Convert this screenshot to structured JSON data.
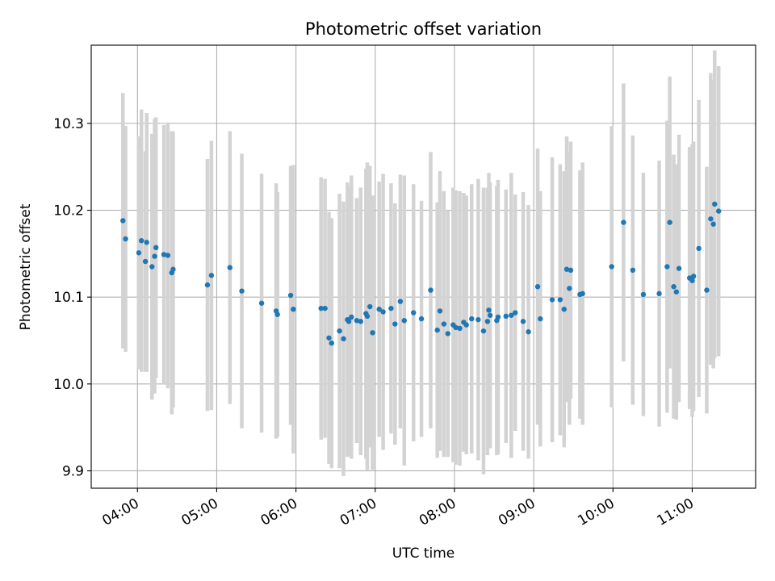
{
  "chart_data": {
    "type": "scatter",
    "title": "Photometric offset variation",
    "xlabel": "UTC time",
    "ylabel": "Photometric offset",
    "grid": true,
    "x_tick_labels": [
      "04:00",
      "05:00",
      "06:00",
      "07:00",
      "08:00",
      "09:00",
      "10:00",
      "11:00"
    ],
    "y_tick_values": [
      9.9,
      10.0,
      10.1,
      10.2,
      10.3
    ],
    "y_tick_labels": [
      "9.9",
      "10.0",
      "10.1",
      "10.2",
      "10.3"
    ],
    "xlim": [
      "03:25",
      "11:48"
    ],
    "ylim": [
      9.88,
      10.39
    ],
    "colors": {
      "point": "#1f77b4",
      "errorbar": "#d3d3d3",
      "grid": "#b0b0b0"
    },
    "series": [
      {
        "x": [
          "03:49",
          "03:51",
          "04:01",
          "04:03",
          "04:06",
          "04:07",
          "04:11",
          "04:13",
          "04:14",
          "04:20",
          "04:23",
          "04:26",
          "04:27",
          "04:53",
          "04:56",
          "05:10",
          "05:19",
          "05:34",
          "05:45",
          "05:46",
          "05:56",
          "05:58",
          "06:19",
          "06:22",
          "06:25",
          "06:27",
          "06:33",
          "06:36",
          "06:39",
          "06:40",
          "06:42",
          "06:46",
          "06:49",
          "06:53",
          "06:54",
          "06:56",
          "06:58",
          "07:03",
          "07:06",
          "07:12",
          "07:15",
          "07:19",
          "07:22",
          "07:29",
          "07:35",
          "07:42",
          "07:47",
          "07:49",
          "07:52",
          "07:55",
          "07:59",
          "08:01",
          "08:04",
          "08:07",
          "08:09",
          "08:13",
          "08:18",
          "08:22",
          "08:25",
          "08:26",
          "08:27",
          "08:32",
          "08:33",
          "08:39",
          "08:43",
          "08:46",
          "08:52",
          "08:56",
          "09:03",
          "09:05",
          "09:14",
          "09:20",
          "09:23",
          "09:25",
          "09:27",
          "09:28",
          "09:35",
          "09:37",
          "09:59",
          "10:08"
        ],
        "y": [
          10.188,
          10.167,
          10.151,
          10.165,
          10.141,
          10.163,
          10.135,
          10.147,
          10.157,
          10.149,
          10.148,
          10.128,
          10.132,
          10.114,
          10.125,
          10.134,
          10.107,
          10.093,
          10.084,
          10.08,
          10.102,
          10.086,
          10.087,
          10.087,
          10.053,
          10.047,
          10.061,
          10.052,
          10.074,
          10.072,
          10.077,
          10.073,
          10.072,
          10.081,
          10.078,
          10.089,
          10.059,
          10.086,
          10.083,
          10.087,
          10.069,
          10.095,
          10.073,
          10.082,
          10.075,
          10.108,
          10.062,
          10.084,
          10.069,
          10.058,
          10.068,
          10.065,
          10.064,
          10.071,
          10.068,
          10.075,
          10.074,
          10.061,
          10.072,
          10.085,
          10.079,
          10.073,
          10.077,
          10.078,
          10.079,
          10.082,
          10.072,
          10.06,
          10.112,
          10.075,
          10.097,
          10.097,
          10.086,
          10.132,
          10.11,
          10.131,
          10.103,
          10.104,
          10.135,
          10.186
        ],
        "yerr": [
          0.147,
          0.13,
          0.134,
          0.151,
          0.127,
          0.149,
          0.153,
          0.158,
          0.15,
          0.149,
          0.153,
          0.163,
          0.159,
          0.145,
          0.155,
          0.157,
          0.158,
          0.149,
          0.147,
          0.141,
          0.149,
          0.166,
          0.151,
          0.149,
          0.145,
          0.144,
          0.158,
          0.158,
          0.158,
          0.155,
          0.163,
          0.141,
          0.154,
          0.167,
          0.177,
          0.162,
          0.158,
          0.147,
          0.159,
          0.144,
          0.139,
          0.146,
          0.167,
          0.148,
          0.136,
          0.159,
          0.147,
          0.161,
          0.153,
          0.142,
          0.158,
          0.158,
          0.158,
          0.149,
          0.149,
          0.155,
          0.162,
          0.165,
          0.154,
          0.158,
          0.153,
          0.155,
          0.158,
          0.146,
          0.164,
          0.136,
          0.149,
          0.146,
          0.159,
          0.147,
          0.164,
          0.156,
          0.159,
          0.153,
          0.157,
          0.148,
          0.143,
          0.151,
          0.162,
          0.16
        ]
      },
      {
        "x": [
          "10:15",
          "10:23",
          "10:35",
          "10:41",
          "10:43",
          "10:46",
          "10:48",
          "10:50",
          "10:58",
          "11:00",
          "11:01",
          "11:05",
          "11:11",
          "11:14",
          "11:16",
          "11:17",
          "11:20"
        ],
        "y": [
          10.131,
          10.103,
          10.104,
          10.135,
          10.186,
          10.112,
          10.106,
          10.133,
          10.122,
          10.119,
          10.124,
          10.156,
          10.108,
          10.19,
          10.184,
          10.207,
          10.199
        ],
        "yerr": [
          0.155,
          0.14,
          0.153,
          0.168,
          0.168,
          0.152,
          0.147,
          0.154,
          0.151,
          0.157,
          0.155,
          0.171,
          0.142,
          0.168,
          0.166,
          0.177,
          0.167
        ]
      }
    ]
  }
}
